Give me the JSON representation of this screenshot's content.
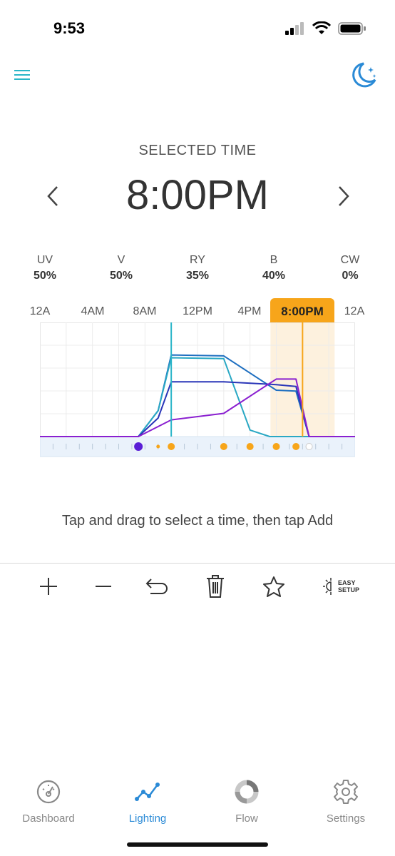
{
  "status_bar": {
    "time": "9:53"
  },
  "header": {
    "menu_icon": "hamburger-icon",
    "night_icon": "moon-stars-icon",
    "accent": "#2a8ad6"
  },
  "selected_time": {
    "label": "SELECTED TIME",
    "value": "8:00PM"
  },
  "channels": [
    {
      "name": "UV",
      "value": "50%"
    },
    {
      "name": "V",
      "value": "50%"
    },
    {
      "name": "RY",
      "value": "35%"
    },
    {
      "name": "B",
      "value": "40%"
    },
    {
      "name": "CW",
      "value": "0%"
    }
  ],
  "time_axis": {
    "ticks": [
      "12A",
      "4AM",
      "8AM",
      "12PM",
      "4PM",
      "8:00PM",
      "12A"
    ],
    "highlight_color": "#f7a51a"
  },
  "chart_data": {
    "type": "line",
    "x_unit": "hour",
    "xlim": [
      0,
      24
    ],
    "ylim": [
      0,
      100
    ],
    "cursor_time": 20,
    "current_time": 10,
    "series": [
      {
        "color": "#1e6fc0",
        "points": [
          [
            0,
            0
          ],
          [
            7.5,
            0
          ],
          [
            9,
            28
          ],
          [
            10,
            88
          ],
          [
            14,
            87
          ],
          [
            18,
            50
          ],
          [
            19.5,
            49
          ],
          [
            20.5,
            0
          ],
          [
            24,
            0
          ]
        ]
      },
      {
        "color": "#2aa8c4",
        "points": [
          [
            0,
            0
          ],
          [
            7.5,
            0
          ],
          [
            9,
            28
          ],
          [
            10,
            85
          ],
          [
            14,
            84
          ],
          [
            16,
            7
          ],
          [
            17.5,
            0
          ],
          [
            24,
            0
          ]
        ]
      },
      {
        "color": "#2a36b8",
        "points": [
          [
            0,
            0
          ],
          [
            7.5,
            0
          ],
          [
            9,
            20
          ],
          [
            10,
            59
          ],
          [
            14,
            59
          ],
          [
            18,
            56
          ],
          [
            19.5,
            54
          ],
          [
            20.5,
            0
          ],
          [
            24,
            0
          ]
        ]
      },
      {
        "color": "#8a1fd0",
        "points": [
          [
            0,
            0
          ],
          [
            7.5,
            0
          ],
          [
            10,
            18
          ],
          [
            14,
            25
          ],
          [
            18,
            62
          ],
          [
            19.5,
            62
          ],
          [
            20.5,
            0
          ],
          [
            24,
            0
          ]
        ]
      }
    ],
    "markers": [
      {
        "t": 7.5,
        "color": "#5a1ed6",
        "size": "large"
      },
      {
        "t": 9,
        "color": "#f7a51a",
        "size": "small"
      },
      {
        "t": 10,
        "color": "#f7a51a",
        "size": "medium"
      },
      {
        "t": 14,
        "color": "#f7a51a",
        "size": "medium"
      },
      {
        "t": 16,
        "color": "#f7a51a",
        "size": "medium"
      },
      {
        "t": 18,
        "color": "#f7a51a",
        "size": "medium"
      },
      {
        "t": 19.5,
        "color": "#f7a51a",
        "size": "medium"
      },
      {
        "t": 20.5,
        "color": "#5a1ed6",
        "size": "moon"
      }
    ]
  },
  "hint": "Tap and drag to select a time, then tap Add",
  "toolbar": {
    "easy_setup_line1": "EASY",
    "easy_setup_line2": "SETUP"
  },
  "tabs": [
    {
      "label": "Dashboard",
      "icon": "gauge-icon",
      "active": false
    },
    {
      "label": "Lighting",
      "icon": "line-chart-icon",
      "active": true
    },
    {
      "label": "Flow",
      "icon": "ring-icon",
      "active": false
    },
    {
      "label": "Settings",
      "icon": "gear-icon",
      "active": false
    }
  ]
}
